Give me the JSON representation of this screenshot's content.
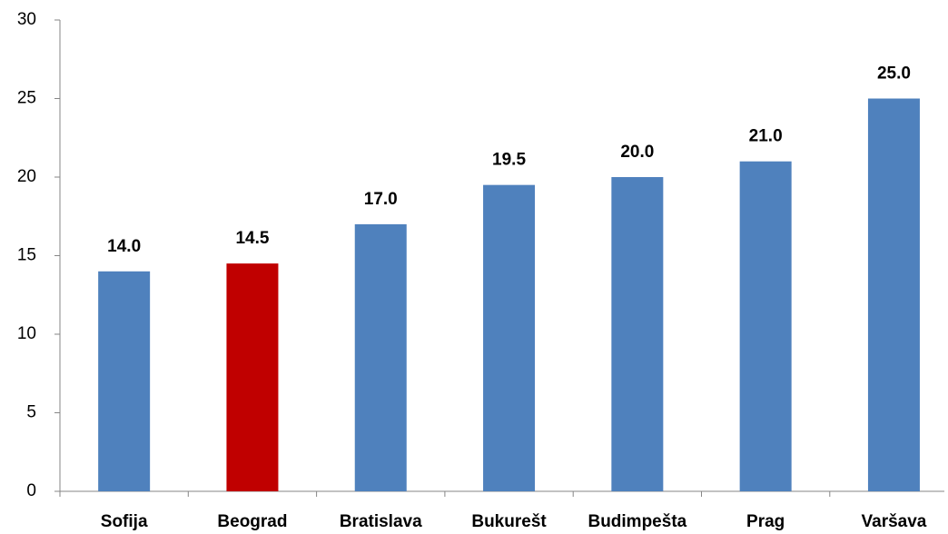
{
  "chart_data": {
    "type": "bar",
    "categories": [
      "Sofija",
      "Beograd",
      "Bratislava",
      "Bukurešt",
      "Budimpešta",
      "Prag",
      "Varšava"
    ],
    "values": [
      14.0,
      14.5,
      17.0,
      19.5,
      20.0,
      21.0,
      25.0
    ],
    "value_labels": [
      "14.0",
      "14.5",
      "17.0",
      "19.5",
      "20.0",
      "21.0",
      "25.0"
    ],
    "colors": [
      "#4f81bd",
      "#c00000",
      "#4f81bd",
      "#4f81bd",
      "#4f81bd",
      "#4f81bd",
      "#4f81bd"
    ],
    "ylim": [
      0,
      30
    ],
    "yticks": [
      0,
      5,
      10,
      15,
      20,
      25,
      30
    ],
    "grid": false
  }
}
